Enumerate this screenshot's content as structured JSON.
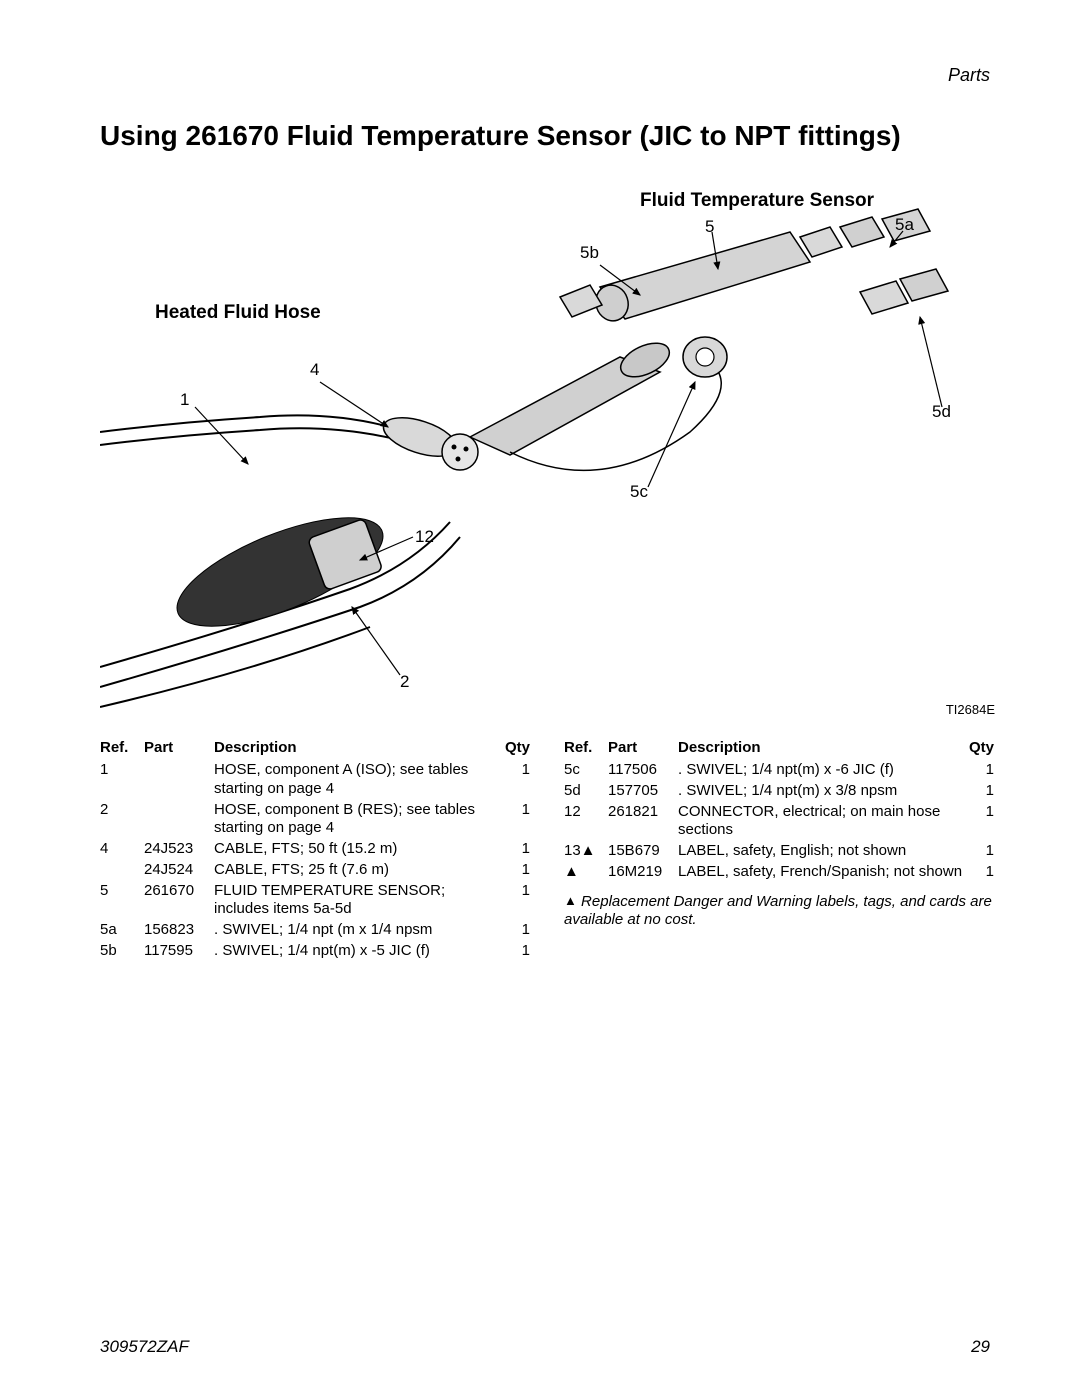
{
  "section": "Parts",
  "title": "Using 261670 Fluid Temperature Sensor (JIC to NPT fittings)",
  "diagram": {
    "labels": {
      "heated_hose": "Heated Fluid Hose",
      "fts": "Fluid Temperature Sensor"
    },
    "callouts": {
      "c1": "1",
      "c2": "2",
      "c4": "4",
      "c5": "5",
      "c5a": "5a",
      "c5b": "5b",
      "c5c": "5c",
      "c5d": "5d",
      "c12": "12"
    },
    "figure_id": "TI2684E",
    "colors": {
      "stroke": "#000000",
      "fill_light": "#d9d9d9",
      "fill_mid": "#bfbfbf",
      "fill_dark": "#333333",
      "background": "#ffffff"
    }
  },
  "table_headers": {
    "ref": "Ref.",
    "part": "Part",
    "desc": "Description",
    "qty": "Qty"
  },
  "left_rows": [
    {
      "ref": "1",
      "part": "",
      "desc": "HOSE, component A (ISO); see tables starting on page 4",
      "qty": "1"
    },
    {
      "ref": "2",
      "part": "",
      "desc": "HOSE, component B (RES); see tables starting on page 4",
      "qty": "1"
    },
    {
      "ref": "4",
      "part": "24J523",
      "desc": "CABLE, FTS; 50 ft (15.2 m)",
      "qty": "1"
    },
    {
      "ref": "",
      "part": "24J524",
      "desc": "CABLE, FTS; 25 ft (7.6 m)",
      "qty": "1"
    },
    {
      "ref": "5",
      "part": "261670",
      "desc": "FLUID TEMPERATURE SENSOR; includes items 5a-5d",
      "qty": "1"
    },
    {
      "ref": "5a",
      "part": "156823",
      "desc": ".  SWIVEL; 1/4 npt (m x 1/4 npsm",
      "qty": "1"
    },
    {
      "ref": "5b",
      "part": "117595",
      "desc": ".  SWIVEL; 1/4 npt(m) x -5 JIC (f)",
      "qty": "1"
    }
  ],
  "right_rows": [
    {
      "ref": "5c",
      "part": "117506",
      "desc": ".  SWIVEL; 1/4 npt(m) x -6 JIC (f)",
      "qty": "1"
    },
    {
      "ref": "5d",
      "part": "157705",
      "desc": ".  SWIVEL; 1/4 npt(m) x 3/8 npsm",
      "qty": "1"
    },
    {
      "ref": "12",
      "part": "261821",
      "desc": "CONNECTOR, electrical; on main hose sections",
      "qty": "1"
    },
    {
      "ref": "13▲",
      "part": "15B679",
      "desc": "LABEL, safety, English; not shown ",
      "qty": "1"
    },
    {
      "ref": "▲",
      "part": "16M219",
      "desc": "LABEL, safety, French/Spanish; not shown",
      "qty": "1"
    }
  ],
  "footnote_prefix": "▲",
  "footnote": "Replacement Danger and Warning labels, tags, and cards are available at no cost.",
  "footer": {
    "doc": "309572ZAF",
    "page": "29"
  }
}
